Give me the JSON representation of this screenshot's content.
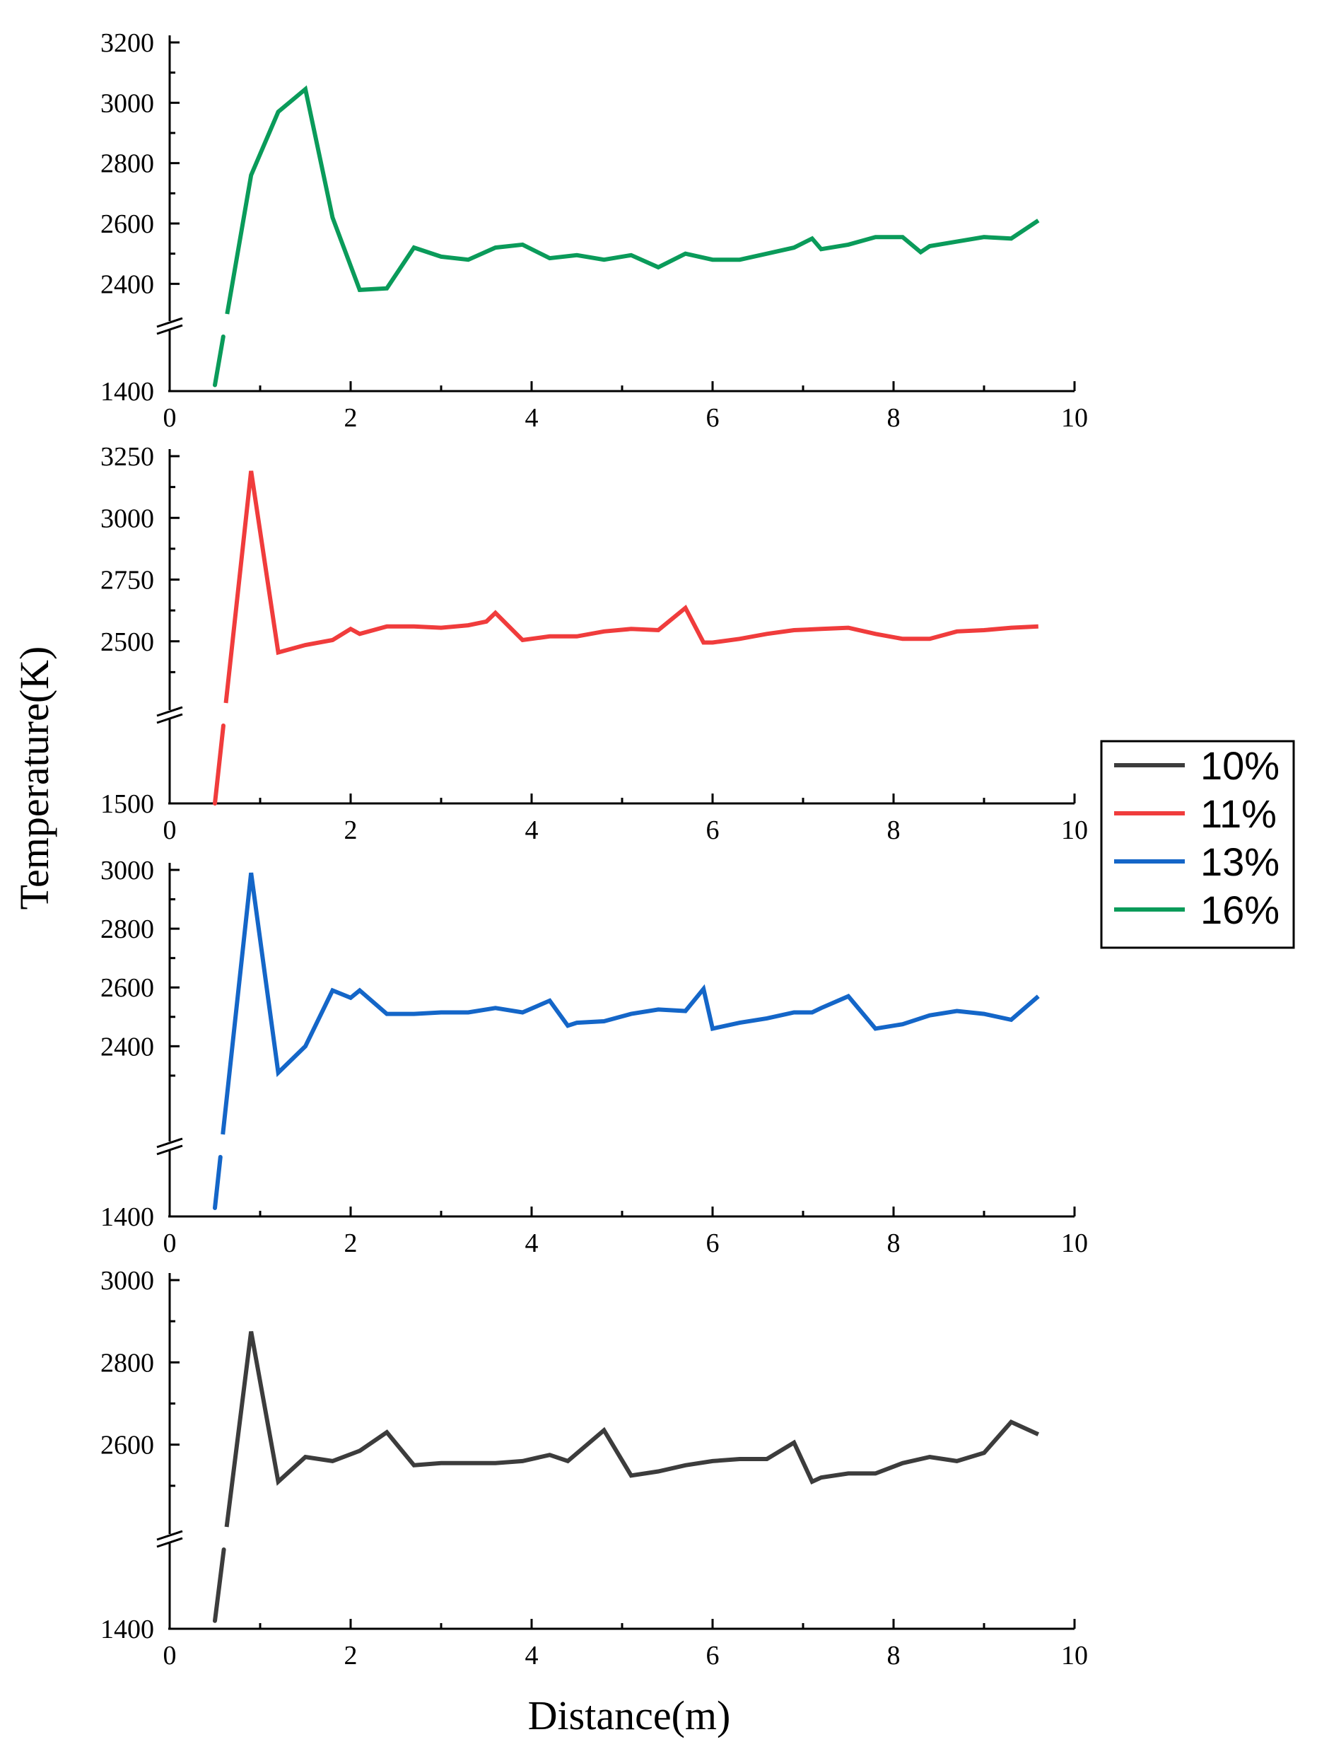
{
  "chart_data": {
    "type": "line",
    "ylabel": "Temperature(K)",
    "xlabel": "Distance(m)",
    "xlim": [
      0,
      10
    ],
    "xticks": [
      0,
      2,
      4,
      6,
      8,
      10
    ],
    "legend": {
      "placement": "right",
      "entries": [
        {
          "label": "10%",
          "color": "#3c3c3c"
        },
        {
          "label": "11%",
          "color": "#f03c3c"
        },
        {
          "label": "13%",
          "color": "#1466c8"
        },
        {
          "label": "16%",
          "color": "#0a9b5a"
        }
      ]
    },
    "panels": [
      {
        "series_name": "16%",
        "color": "#0a9b5a",
        "yticks": [
          1400,
          2400,
          2600,
          2800,
          3000,
          3200
        ],
        "ybreak": [
          1400,
          2300
        ],
        "upper_ylim": [
          2300,
          3200
        ],
        "x": [
          0.5,
          0.9,
          1.2,
          1.5,
          1.8,
          2.1,
          2.4,
          2.7,
          3.0,
          3.3,
          3.6,
          3.9,
          4.2,
          4.5,
          4.8,
          5.1,
          5.4,
          5.7,
          6.0,
          6.3,
          6.6,
          6.9,
          7.1,
          7.2,
          7.5,
          7.8,
          8.1,
          8.3,
          8.4,
          8.7,
          9.0,
          9.3,
          9.6
        ],
        "values": [
          1500,
          2760,
          2970,
          3045,
          2620,
          2380,
          2385,
          2520,
          2490,
          2480,
          2520,
          2530,
          2485,
          2495,
          2480,
          2495,
          2455,
          2500,
          2480,
          2480,
          2500,
          2520,
          2550,
          2515,
          2530,
          2555,
          2555,
          2505,
          2525,
          2540,
          2555,
          2550,
          2610
        ]
      },
      {
        "series_name": "11%",
        "color": "#f03c3c",
        "yticks": [
          1500,
          2500,
          2750,
          3000,
          3250
        ],
        "ybreak": [
          1500,
          2250
        ],
        "upper_ylim": [
          2250,
          3250
        ],
        "x": [
          0.5,
          0.9,
          1.2,
          1.5,
          1.8,
          2.0,
          2.1,
          2.4,
          2.7,
          3.0,
          3.3,
          3.5,
          3.6,
          3.9,
          4.2,
          4.5,
          4.8,
          5.1,
          5.4,
          5.7,
          5.9,
          6.0,
          6.3,
          6.6,
          6.9,
          7.2,
          7.5,
          7.8,
          8.1,
          8.4,
          8.7,
          9.0,
          9.3,
          9.6
        ],
        "values": [
          1500,
          3190,
          2455,
          2485,
          2505,
          2550,
          2530,
          2560,
          2560,
          2555,
          2565,
          2580,
          2615,
          2505,
          2520,
          2520,
          2540,
          2550,
          2545,
          2635,
          2495,
          2495,
          2510,
          2530,
          2545,
          2550,
          2555,
          2530,
          2510,
          2510,
          2540,
          2545,
          2555,
          2560
        ]
      },
      {
        "series_name": "13%",
        "color": "#1466c8",
        "yticks": [
          1400,
          2400,
          2600,
          2800,
          3000
        ],
        "ybreak": [
          1400,
          2100
        ],
        "upper_ylim": [
          2100,
          3000
        ],
        "x": [
          0.5,
          0.9,
          1.2,
          1.5,
          1.8,
          2.0,
          2.1,
          2.4,
          2.7,
          3.0,
          3.3,
          3.6,
          3.9,
          4.2,
          4.4,
          4.5,
          4.8,
          5.1,
          5.4,
          5.7,
          5.9,
          6.0,
          6.3,
          6.6,
          6.9,
          7.1,
          7.2,
          7.5,
          7.8,
          8.1,
          8.4,
          8.7,
          9.0,
          9.3,
          9.6
        ],
        "values": [
          1500,
          2990,
          2310,
          2400,
          2590,
          2565,
          2590,
          2510,
          2510,
          2515,
          2515,
          2530,
          2515,
          2555,
          2470,
          2480,
          2485,
          2510,
          2525,
          2520,
          2595,
          2460,
          2480,
          2495,
          2515,
          2515,
          2530,
          2570,
          2460,
          2475,
          2505,
          2520,
          2510,
          2490,
          2570
        ]
      },
      {
        "series_name": "10%",
        "color": "#3c3c3c",
        "yticks": [
          1400,
          2600,
          2800,
          3000
        ],
        "ybreak": [
          1400,
          2400
        ],
        "upper_ylim": [
          2400,
          3000
        ],
        "x": [
          0.5,
          0.9,
          1.2,
          1.5,
          1.8,
          2.1,
          2.4,
          2.7,
          3.0,
          3.3,
          3.6,
          3.9,
          4.2,
          4.4,
          4.8,
          5.1,
          5.4,
          5.7,
          6.0,
          6.3,
          6.6,
          6.9,
          7.1,
          7.2,
          7.5,
          7.8,
          8.1,
          8.4,
          8.7,
          9.0,
          9.3,
          9.6
        ],
        "values": [
          1500,
          2875,
          2510,
          2570,
          2560,
          2585,
          2630,
          2550,
          2555,
          2555,
          2555,
          2560,
          2575,
          2560,
          2635,
          2525,
          2535,
          2550,
          2560,
          2565,
          2565,
          2605,
          2510,
          2520,
          2530,
          2530,
          2555,
          2570,
          2560,
          2580,
          2655,
          2625
        ]
      }
    ]
  }
}
